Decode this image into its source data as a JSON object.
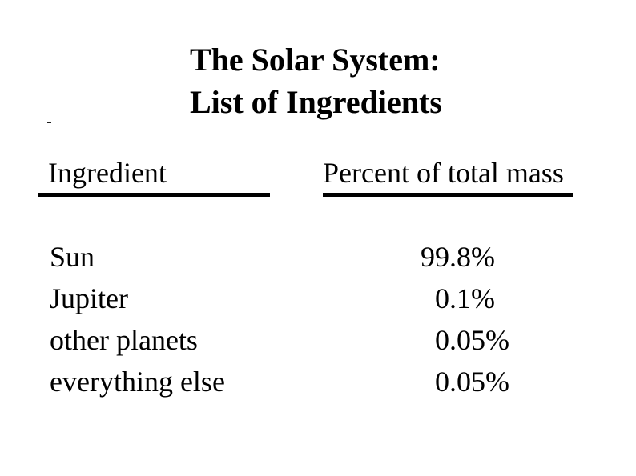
{
  "slide": {
    "title_line1": "The Solar System:",
    "title_line2": "List of Ingredients"
  },
  "table": {
    "columns": [
      {
        "label": "Ingredient"
      },
      {
        "label": "Percent of total mass"
      }
    ],
    "rows": [
      {
        "ingredient": "Sun",
        "percent": "99.8%"
      },
      {
        "ingredient": "Jupiter",
        "percent": "0.1%"
      },
      {
        "ingredient": "other planets",
        "percent": "0.05%"
      },
      {
        "ingredient": "everything else",
        "percent": "0.05%"
      }
    ]
  },
  "colors": {
    "background": "#ffffff",
    "text": "#000000",
    "rule": "#000000"
  }
}
